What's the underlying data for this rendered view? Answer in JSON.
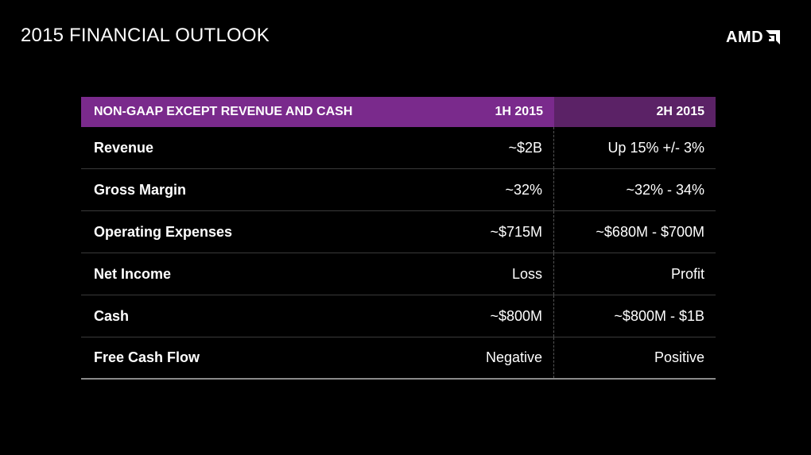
{
  "header": {
    "title": "2015 FINANCIAL OUTLOOK",
    "logo": {
      "text": "AMD",
      "icon": "amd-arrow-logo-icon"
    }
  },
  "table": {
    "columns": {
      "label": "NON-GAAP EXCEPT REVENUE AND CASH",
      "h1": "1H 2015",
      "h2": "2H 2015"
    },
    "rows": [
      {
        "label": "Revenue",
        "h1": "~$2B",
        "h2": "Up 15% +/- 3%"
      },
      {
        "label": "Gross Margin",
        "h1": "~32%",
        "h2": "~32% - 34%"
      },
      {
        "label": "Operating Expenses",
        "h1": "~$715M",
        "h2": "~$680M - $700M"
      },
      {
        "label": "Net Income",
        "h1": "Loss",
        "h2": "Profit"
      },
      {
        "label": "Cash",
        "h1": "~$800M",
        "h2": "~$800M - $1B"
      },
      {
        "label": "Free Cash Flow",
        "h1": "Negative",
        "h2": "Positive"
      }
    ]
  },
  "colors": {
    "background": "#000000",
    "header_primary": "#7a2a8c",
    "header_secondary": "#5b2266",
    "text": "#ffffff"
  }
}
